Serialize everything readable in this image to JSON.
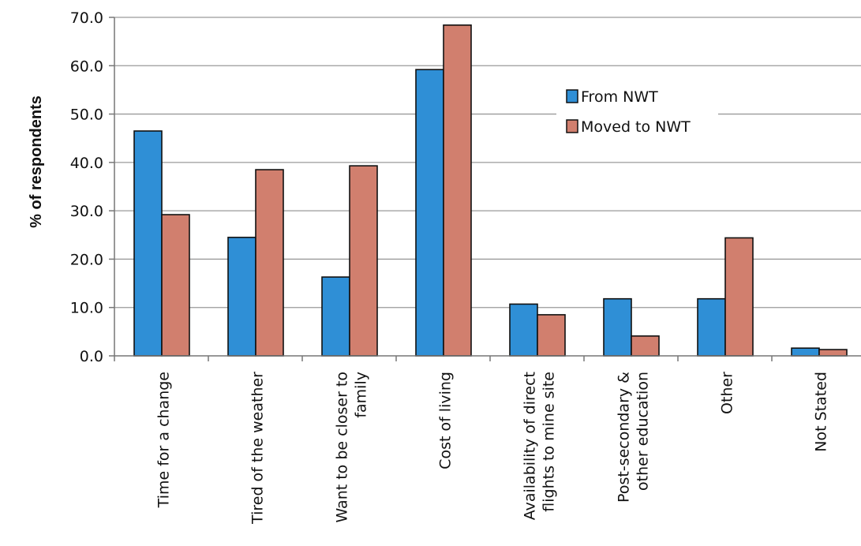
{
  "chart_data": {
    "type": "bar",
    "title": "",
    "xlabel": "",
    "ylabel": "% of respondents",
    "ylim": [
      0,
      70
    ],
    "y_ticks": [
      "0.0",
      "10.0",
      "20.0",
      "30.0",
      "40.0",
      "50.0",
      "60.0",
      "70.0"
    ],
    "grid": true,
    "legend_position": "top-right",
    "categories": [
      [
        "Time for a change"
      ],
      [
        "Tired of the weather"
      ],
      [
        "Want to be closer to",
        "family"
      ],
      [
        "Cost of living"
      ],
      [
        "Availability of direct",
        "flights to mine site"
      ],
      [
        "Post-secondary &",
        "other education"
      ],
      [
        "Other"
      ],
      [
        "Not Stated"
      ]
    ],
    "series": [
      {
        "name": "From NWT",
        "color": "#2f8fd6",
        "values": [
          46.5,
          24.5,
          16.3,
          59.2,
          10.7,
          11.8,
          11.8,
          1.6
        ]
      },
      {
        "name": "Moved to NWT",
        "color": "#d17f6e",
        "values": [
          29.2,
          38.5,
          39.3,
          68.4,
          8.5,
          4.1,
          24.4,
          1.3
        ]
      }
    ]
  }
}
